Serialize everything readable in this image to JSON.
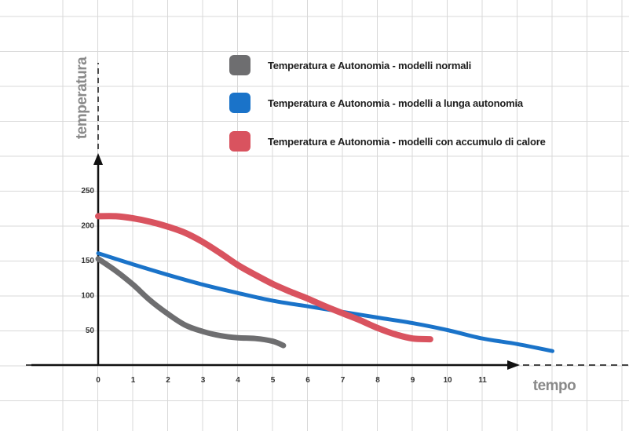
{
  "chart_data": {
    "type": "line",
    "title": "",
    "xlabel": "tempo",
    "ylabel": "temperatura",
    "xlim": [
      0,
      13
    ],
    "ylim": [
      0,
      300
    ],
    "x_ticks": [
      "0",
      "1",
      "2",
      "3",
      "4",
      "5",
      "6",
      "7",
      "8",
      "9",
      "10",
      "11"
    ],
    "y_ticks": [
      "50",
      "100",
      "150",
      "200",
      "250"
    ],
    "grid": true,
    "legend_position": "top-right",
    "colors": {
      "grid": "#d8d8d8",
      "axis": "#111111",
      "axis_title": "#8a8a8a"
    },
    "series": [
      {
        "name": "Temperatura e Autonomia - modelli normali",
        "color": "#6e6e70",
        "points": [
          [
            0,
            152
          ],
          [
            0.5,
            135
          ],
          [
            1,
            115
          ],
          [
            1.5,
            92
          ],
          [
            2,
            73
          ],
          [
            2.5,
            57
          ],
          [
            3,
            48
          ],
          [
            3.5,
            42
          ],
          [
            4,
            39
          ],
          [
            4.5,
            38
          ],
          [
            5,
            34
          ],
          [
            5.3,
            28
          ]
        ]
      },
      {
        "name": "Temperatura e Autonomia - modelli a lunga autonomia",
        "color": "#1a73c9",
        "points": [
          [
            0,
            160
          ],
          [
            1,
            144
          ],
          [
            2,
            129
          ],
          [
            3,
            115
          ],
          [
            4,
            103
          ],
          [
            5,
            92
          ],
          [
            6,
            84
          ],
          [
            7,
            76
          ],
          [
            8,
            68
          ],
          [
            9,
            60
          ],
          [
            10,
            50
          ],
          [
            11,
            38
          ],
          [
            12,
            30
          ],
          [
            13,
            20
          ]
        ]
      },
      {
        "name": "Temperatura e Autonomia - modelli con accumulo di calore",
        "color": "#d9535f",
        "points": [
          [
            0,
            213
          ],
          [
            0.5,
            213
          ],
          [
            1,
            210
          ],
          [
            1.5,
            205
          ],
          [
            2,
            198
          ],
          [
            2.5,
            189
          ],
          [
            3,
            176
          ],
          [
            3.5,
            160
          ],
          [
            4,
            143
          ],
          [
            4.5,
            129
          ],
          [
            5,
            116
          ],
          [
            5.5,
            105
          ],
          [
            6,
            95
          ],
          [
            6.5,
            84
          ],
          [
            7,
            74
          ],
          [
            7.5,
            64
          ],
          [
            8,
            53
          ],
          [
            8.5,
            44
          ],
          [
            9,
            38
          ],
          [
            9.5,
            37
          ]
        ]
      }
    ]
  }
}
